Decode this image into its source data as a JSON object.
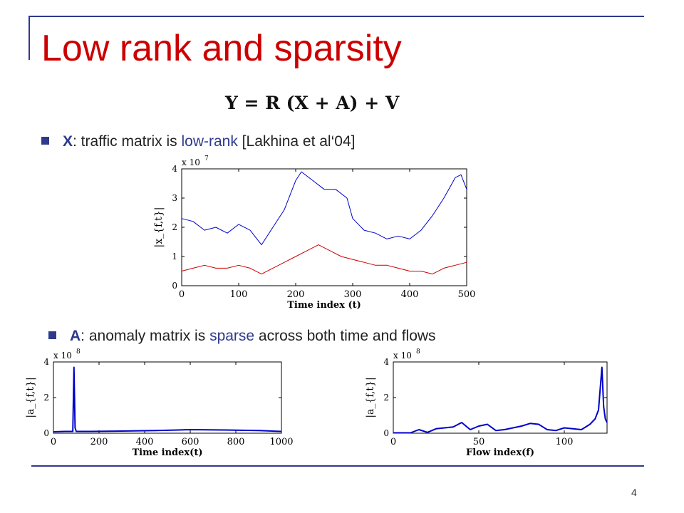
{
  "slide": {
    "title": "Low rank and sparsity",
    "equation": "Y = R (X + A) + V",
    "page_number": "4",
    "bullets": [
      {
        "var": "X",
        "pre": ": traffic matrix is ",
        "highlight": "low-rank",
        "post": " [Lakhina et al‘04]"
      },
      {
        "var": "A",
        "pre": ": anomaly matrix is ",
        "highlight": "sparse",
        "post": " across both time and flows"
      }
    ],
    "colors": {
      "title": "#cc0000",
      "accent": "#2e3a8c",
      "series_blue": "#0000cc",
      "series_red": "#cc0000"
    }
  },
  "chart_data": [
    {
      "type": "line",
      "xlabel": "Time index (t)",
      "ylabel": "|x_{f,t}|",
      "scale_label": "x 10",
      "scale_exp": "7",
      "xlim": [
        0,
        500
      ],
      "ylim": [
        0,
        4
      ],
      "xticks": [
        0,
        100,
        200,
        300,
        400,
        500
      ],
      "yticks": [
        0,
        1,
        2,
        3,
        4
      ],
      "series": [
        {
          "color": "#0000cc",
          "x": [
            0,
            20,
            40,
            60,
            80,
            100,
            120,
            140,
            160,
            180,
            200,
            210,
            230,
            250,
            270,
            290,
            300,
            320,
            340,
            360,
            380,
            400,
            420,
            440,
            460,
            480,
            490,
            500
          ],
          "values": [
            2.3,
            2.2,
            1.9,
            2.0,
            1.8,
            2.1,
            1.9,
            1.4,
            2.0,
            2.6,
            3.6,
            3.9,
            3.6,
            3.3,
            3.3,
            3.0,
            2.3,
            1.9,
            1.8,
            1.6,
            1.7,
            1.6,
            1.9,
            2.4,
            3.0,
            3.7,
            3.8,
            3.3
          ]
        },
        {
          "color": "#cc0000",
          "x": [
            0,
            20,
            40,
            60,
            80,
            100,
            120,
            140,
            160,
            180,
            200,
            220,
            240,
            260,
            280,
            300,
            320,
            340,
            360,
            380,
            400,
            420,
            440,
            460,
            480,
            500
          ],
          "values": [
            0.5,
            0.6,
            0.7,
            0.6,
            0.6,
            0.7,
            0.6,
            0.4,
            0.6,
            0.8,
            1.0,
            1.2,
            1.4,
            1.2,
            1.0,
            0.9,
            0.8,
            0.7,
            0.7,
            0.6,
            0.5,
            0.5,
            0.4,
            0.6,
            0.7,
            0.8
          ]
        }
      ]
    },
    {
      "type": "line",
      "xlabel": "Time index(t)",
      "ylabel": "|a_{f,t}|",
      "scale_label": "x 10",
      "scale_exp": "8",
      "xlim": [
        0,
        1000
      ],
      "ylim": [
        0,
        4
      ],
      "xticks": [
        0,
        200,
        400,
        600,
        800,
        1000
      ],
      "yticks": [
        0,
        2,
        4
      ],
      "series": [
        {
          "color": "#0000cc",
          "x": [
            0,
            50,
            85,
            90,
            95,
            100,
            150,
            300,
            450,
            600,
            750,
            900,
            1000
          ],
          "values": [
            0.08,
            0.1,
            0.1,
            3.7,
            0.3,
            0.1,
            0.1,
            0.12,
            0.15,
            0.2,
            0.18,
            0.15,
            0.1
          ]
        }
      ]
    },
    {
      "type": "line",
      "xlabel": "Flow index(f)",
      "ylabel": "|a_{f,t}|",
      "scale_label": "x 10",
      "scale_exp": "8",
      "xlim": [
        0,
        125
      ],
      "ylim": [
        0,
        4
      ],
      "xticks": [
        0,
        50,
        100
      ],
      "yticks": [
        0,
        2,
        4
      ],
      "series": [
        {
          "color": "#0000cc",
          "x": [
            0,
            10,
            15,
            20,
            25,
            30,
            35,
            40,
            45,
            50,
            55,
            60,
            65,
            70,
            75,
            80,
            85,
            90,
            95,
            100,
            105,
            110,
            115,
            118,
            120,
            121,
            122,
            123,
            124,
            125
          ],
          "values": [
            0.02,
            0.02,
            0.2,
            0.05,
            0.25,
            0.3,
            0.35,
            0.6,
            0.2,
            0.4,
            0.5,
            0.15,
            0.2,
            0.3,
            0.4,
            0.55,
            0.5,
            0.2,
            0.15,
            0.3,
            0.25,
            0.2,
            0.5,
            0.8,
            1.3,
            2.5,
            3.7,
            1.5,
            0.8,
            0.6
          ]
        }
      ]
    }
  ]
}
